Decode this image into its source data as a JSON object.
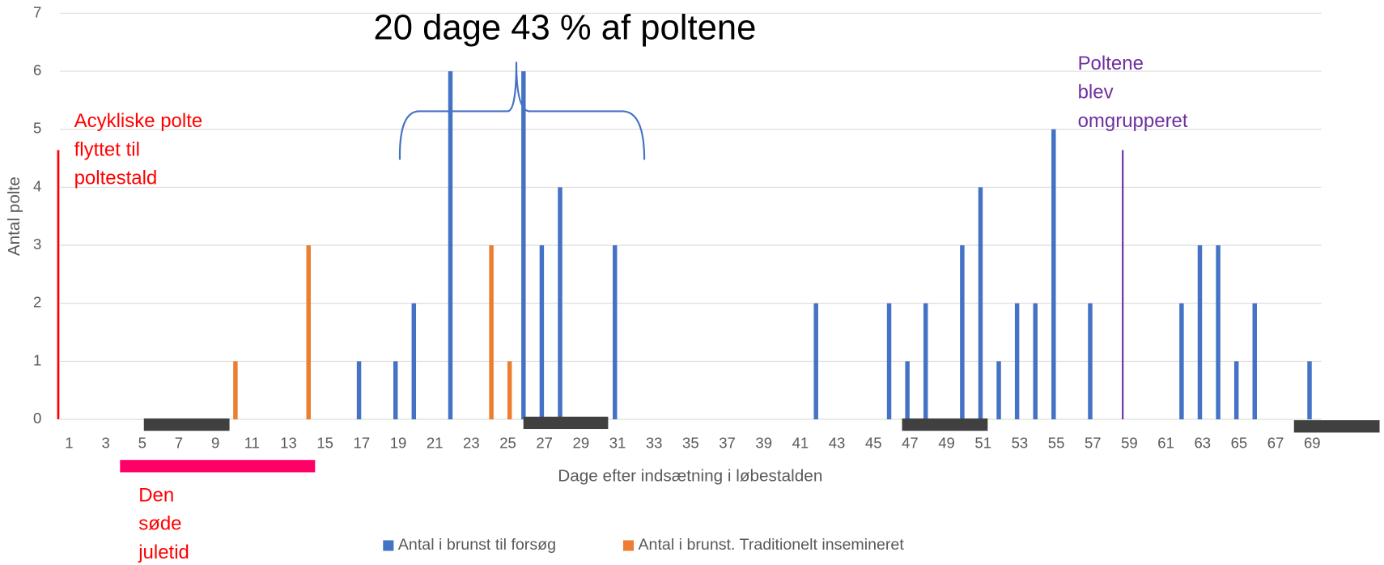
{
  "chart_data": {
    "type": "bar",
    "title": "20 dage 43 % af poltene",
    "y_label": "Antal polte",
    "x_label": "Dage efter indsætning i løbestalden",
    "annotations": {
      "left": {
        "lines": [
          "Acykliske polte",
          "flyttet til",
          "poltestald"
        ],
        "color": "#ff0000"
      },
      "right": {
        "lines": [
          "Poltene",
          "blev",
          "omgrupperet"
        ],
        "color": "#7030a0"
      },
      "bottom": {
        "lines": [
          "Den",
          "søde",
          "juletid"
        ],
        "color": "#ff0000"
      }
    },
    "categories": [
      1,
      null,
      3,
      null,
      5,
      null,
      7,
      null,
      9,
      null,
      11,
      null,
      13,
      null,
      15,
      null,
      17,
      null,
      19,
      null,
      21,
      null,
      23,
      null,
      25,
      null,
      27,
      null,
      29,
      null,
      31,
      null,
      33,
      null,
      35,
      null,
      37,
      null,
      39,
      null,
      41,
      null,
      43,
      null,
      45,
      null,
      47,
      null,
      49,
      null,
      51,
      null,
      53,
      null,
      55,
      null,
      57,
      null,
      59,
      null,
      61,
      null,
      63,
      null,
      65,
      null,
      67,
      null,
      69
    ],
    "series": [
      {
        "name": "Antal i brunst til forsøg",
        "color": "#4472c4",
        "values": [
          0,
          0,
          0,
          0,
          0,
          0,
          0,
          0,
          0,
          0,
          0,
          0,
          0,
          0,
          0,
          0,
          1,
          0,
          1,
          2,
          0,
          6,
          0,
          0,
          0,
          6,
          3,
          4,
          0,
          0,
          3,
          0,
          0,
          0,
          0,
          0,
          0,
          0,
          0,
          0,
          0,
          2,
          0,
          0,
          0,
          2,
          1,
          2,
          0,
          3,
          4,
          1,
          2,
          2,
          5,
          0,
          2,
          0,
          0,
          0,
          0,
          2,
          3,
          3,
          1,
          2,
          0,
          0,
          1
        ]
      },
      {
        "name": "Antal i brunst. Traditionelt insemineret",
        "color": "#ed7d31",
        "values": [
          0,
          0,
          0,
          0,
          0,
          0,
          0,
          0,
          0,
          1,
          0,
          0,
          0,
          3,
          0,
          0,
          0,
          0,
          0,
          0,
          0,
          0,
          0,
          3,
          1,
          0,
          0,
          0,
          0,
          0,
          0,
          0,
          0,
          0,
          0,
          0,
          0,
          0,
          0,
          0,
          0,
          0,
          0,
          0,
          0,
          0,
          0,
          0,
          0,
          0,
          0,
          0,
          0,
          0,
          0,
          0,
          0,
          0,
          0,
          0,
          0,
          0,
          0,
          0,
          0,
          0,
          0,
          0,
          0
        ]
      }
    ],
    "ylim": [
      0,
      7
    ],
    "yticks": [
      0,
      1,
      2,
      3,
      4,
      5,
      6,
      7
    ],
    "grid": true,
    "legend": "bottom"
  }
}
